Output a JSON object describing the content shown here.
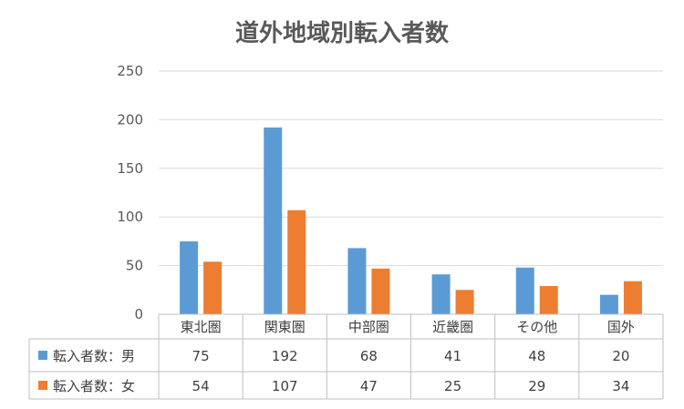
{
  "chart_data": {
    "type": "bar",
    "title": "道外地域別転入者数",
    "categories": [
      "東北圏",
      "関東圏",
      "中部圏",
      "近畿圏",
      "その他",
      "国外"
    ],
    "series": [
      {
        "name": "転入者数：男",
        "values": [
          75,
          192,
          68,
          41,
          48,
          20
        ],
        "color": "#5B9BD5"
      },
      {
        "name": "転入者数：女",
        "values": [
          54,
          107,
          47,
          25,
          29,
          34
        ],
        "color": "#ED7D31"
      }
    ],
    "yticks": [
      "0",
      "50",
      "100",
      "150",
      "200",
      "250"
    ],
    "ylim": [
      0,
      250
    ],
    "grid": true,
    "legend": "data-table"
  }
}
